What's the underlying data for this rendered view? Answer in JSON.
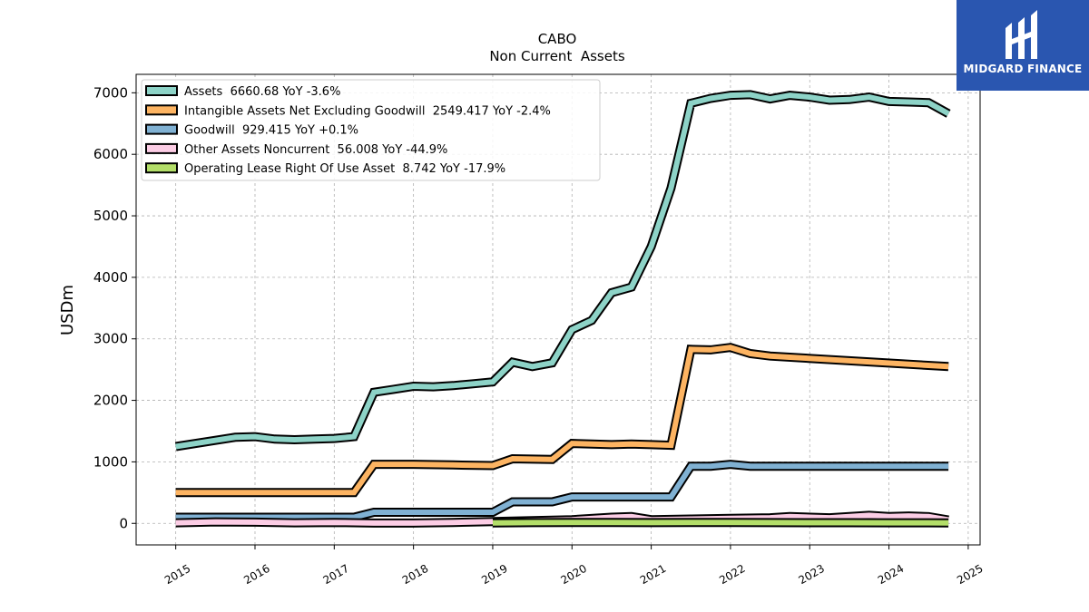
{
  "brand": {
    "name": "MIDGARD FINANCE",
    "logo_icon": "midgard-monogram-icon",
    "color": "#2a56b0"
  },
  "chart_data": {
    "type": "line",
    "title": "CABO",
    "subtitle": "Non Current  Assets",
    "ylabel": "USDm",
    "xlabel": "",
    "xlim": [
      2014.5,
      2025.15
    ],
    "ylim": [
      -350,
      7300
    ],
    "grid": true,
    "legend_placement": "top-left",
    "x_ticks": [
      2015,
      2016,
      2017,
      2018,
      2019,
      2020,
      2021,
      2022,
      2023,
      2024,
      2025
    ],
    "y_ticks": [
      0,
      1000,
      2000,
      3000,
      4000,
      5000,
      6000,
      7000
    ],
    "series": [
      {
        "name": "Assets",
        "legend": "Assets  6660.68 YoY -3.6%",
        "color": "#8dd3c7",
        "x": [
          2015.0,
          2015.5,
          2015.75,
          2016.0,
          2016.25,
          2016.5,
          2016.75,
          2017.0,
          2017.25,
          2017.5,
          2017.75,
          2018.0,
          2018.25,
          2018.5,
          2018.75,
          2019.0,
          2019.25,
          2019.5,
          2019.75,
          2020.0,
          2020.25,
          2020.5,
          2020.75,
          2021.0,
          2021.25,
          2021.5,
          2021.75,
          2022.0,
          2022.25,
          2022.5,
          2022.75,
          2023.0,
          2023.25,
          2023.5,
          2023.75,
          2024.0,
          2024.25,
          2024.5,
          2024.75
        ],
        "y": [
          1250,
          1350,
          1400,
          1410,
          1370,
          1360,
          1370,
          1380,
          1410,
          2130,
          2180,
          2230,
          2220,
          2240,
          2270,
          2300,
          2620,
          2550,
          2610,
          3150,
          3300,
          3750,
          3840,
          4500,
          5450,
          6830,
          6910,
          6960,
          6970,
          6900,
          6960,
          6930,
          6880,
          6890,
          6930,
          6860,
          6850,
          6840,
          6660
        ]
      },
      {
        "name": "Intangible Assets Net Excluding Goodwill",
        "legend": "Intangible Assets Net Excluding Goodwill  2549.417 YoY -2.4%",
        "color": "#fdb462",
        "x": [
          2015.0,
          2017.25,
          2017.5,
          2018.0,
          2018.5,
          2019.0,
          2019.25,
          2019.75,
          2020.0,
          2020.5,
          2020.75,
          2021.0,
          2021.25,
          2021.5,
          2021.75,
          2022.0,
          2022.25,
          2022.5,
          2024.75
        ],
        "y": [
          500,
          500,
          960,
          960,
          950,
          940,
          1050,
          1040,
          1300,
          1280,
          1290,
          1280,
          1270,
          2830,
          2820,
          2860,
          2760,
          2720,
          2550
        ]
      },
      {
        "name": "Goodwill",
        "legend": "Goodwill  929.415 YoY +0.1%",
        "color": "#80b1d3",
        "x": [
          2015.0,
          2017.25,
          2017.5,
          2019.0,
          2019.25,
          2019.75,
          2020.0,
          2021.25,
          2021.5,
          2021.75,
          2022.0,
          2022.25,
          2024.75
        ],
        "y": [
          100,
          100,
          180,
          180,
          350,
          350,
          430,
          430,
          930,
          930,
          960,
          929,
          929
        ]
      },
      {
        "name": "Other Assets Noncurrent",
        "legend": "Other Assets Noncurrent  56.008 YoY -44.9%",
        "color": "#fccde5",
        "x": [
          2015.0,
          2015.5,
          2016.0,
          2016.5,
          2017.0,
          2017.5,
          2018.0,
          2018.5,
          2019.0,
          2019.5,
          2020.0,
          2020.5,
          2020.75,
          2021.0,
          2021.5,
          2022.0,
          2022.5,
          2022.75,
          2023.25,
          2023.75,
          2024.0,
          2024.25,
          2024.5,
          2024.75
        ],
        "y": [
          10,
          25,
          20,
          10,
          15,
          5,
          5,
          15,
          30,
          45,
          60,
          100,
          110,
          60,
          70,
          80,
          90,
          110,
          90,
          130,
          110,
          120,
          110,
          56
        ]
      },
      {
        "name": "Operating Lease Right Of Use Asset",
        "legend": "Operating Lease Right Of Use Asset  8.742 YoY -17.9%",
        "color": "#b3de69",
        "x": [
          2019.0,
          2019.5,
          2020.0,
          2020.5,
          2021.0,
          2021.5,
          2022.0,
          2022.5,
          2023.0,
          2023.5,
          2024.0,
          2024.5,
          2024.75
        ],
        "y": [
          8,
          12,
          14,
          15,
          13,
          14,
          14,
          12,
          11,
          11,
          10,
          9,
          8.7
        ]
      }
    ]
  }
}
